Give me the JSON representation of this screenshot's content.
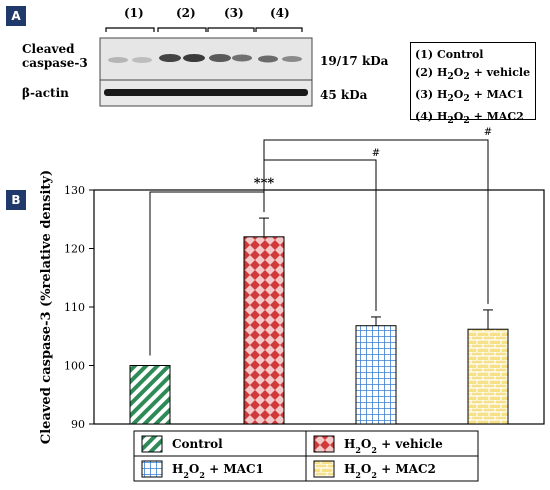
{
  "panel_a": {
    "tag": "A",
    "lanes": [
      "(1)",
      "(2)",
      "(3)",
      "(4)"
    ],
    "rows": [
      {
        "label_lines": [
          "Cleaved",
          "caspase-3"
        ],
        "kda": "19/17 kDa"
      },
      {
        "label_lines": [
          "β-actin"
        ],
        "kda": "45 kDa"
      }
    ],
    "legend": [
      {
        "num": "(1)",
        "label": "Control"
      },
      {
        "num": "(2)",
        "label": "H2O2 + vehicle"
      },
      {
        "num": "(3)",
        "label": "H2O2 + MAC1"
      },
      {
        "num": "(4)",
        "label": "H2O2 + MAC2"
      }
    ]
  },
  "panel_b": {
    "tag": "B"
  },
  "chart_data": {
    "type": "bar",
    "ylabel": "Cleaved caspase-3 (%relative density)",
    "ylim": [
      90,
      130
    ],
    "yticks": [
      90,
      100,
      110,
      120,
      130
    ],
    "categories": [
      "Control",
      "H2O2 + vehicle",
      "H2O2 + MAC1",
      "H2O2 + MAC2"
    ],
    "values": [
      100,
      122,
      106.8,
      106.2
    ],
    "errors": [
      0,
      3.2,
      1.5,
      3.3
    ],
    "significance": [
      {
        "from": 0,
        "to": 1,
        "label": "***"
      },
      {
        "from": 1,
        "to": 2,
        "label": "#"
      },
      {
        "from": 1,
        "to": 3,
        "label": "#"
      }
    ],
    "legend": [
      {
        "label": "Control",
        "pattern": "diagonal-green"
      },
      {
        "label": "H2O2 + vehicle",
        "pattern": "diamond-red"
      },
      {
        "label": "H2O2 + MAC1",
        "pattern": "grid-blue"
      },
      {
        "label": "H2O2 + MAC2",
        "pattern": "brick-yellow"
      }
    ],
    "colors": {
      "control": "#2e8b57",
      "vehicle": "#d13a3a",
      "mac1": "#3a7fd1",
      "mac2": "#e8c84a"
    }
  }
}
